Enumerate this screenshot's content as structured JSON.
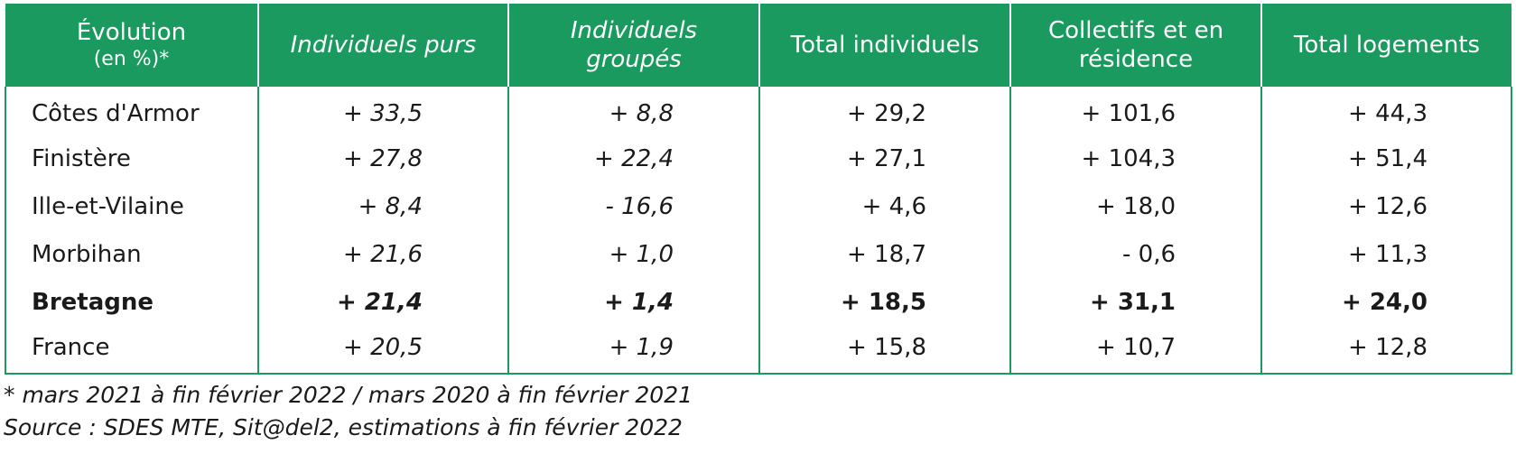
{
  "table": {
    "headers": [
      {
        "line1": "Évolution",
        "line2": "(en %)*"
      },
      {
        "line1": "Individuels purs",
        "line2": ""
      },
      {
        "line1": "Individuels",
        "line2": "groupés"
      },
      {
        "line1": "Total individuels",
        "line2": ""
      },
      {
        "line1": "Collectifs et en",
        "line2": "résidence"
      },
      {
        "line1": "Total logements",
        "line2": ""
      }
    ],
    "rows": [
      {
        "label": "Côtes d'Armor",
        "values": [
          "+ 33,5",
          "+ 8,8",
          "+ 29,2",
          "+ 101,6",
          "+ 44,3"
        ]
      },
      {
        "label": "Finistère",
        "values": [
          "+ 27,8",
          "+ 22,4",
          "+ 27,1",
          "+ 104,3",
          "+ 51,4"
        ]
      },
      {
        "label": "Ille-et-Vilaine",
        "values": [
          "+ 8,4",
          "- 16,6",
          "+ 4,6",
          "+ 18,0",
          "+ 12,6"
        ]
      },
      {
        "label": "Morbihan",
        "values": [
          "+ 21,6",
          "+ 1,0",
          "+ 18,7",
          "- 0,6",
          "+ 11,3"
        ]
      },
      {
        "label": "Bretagne",
        "values": [
          "+ 21,4",
          "+ 1,4",
          "+ 18,5",
          "+ 31,1",
          "+ 24,0"
        ]
      },
      {
        "label": "France",
        "values": [
          "+ 20,5",
          "+ 1,9",
          "+ 15,8",
          "+ 10,7",
          "+ 12,8"
        ]
      }
    ]
  },
  "notes": {
    "footnote": "* mars 2021 à fin février 2022 /  mars 2020 à fin février 2021",
    "source": "Source : SDES MTE, Sit@del2, estimations à fin février 2022"
  },
  "colors": {
    "header_bg": "#1a9a5f",
    "header_text": "#ffffff",
    "border": "#1a9a5f"
  }
}
